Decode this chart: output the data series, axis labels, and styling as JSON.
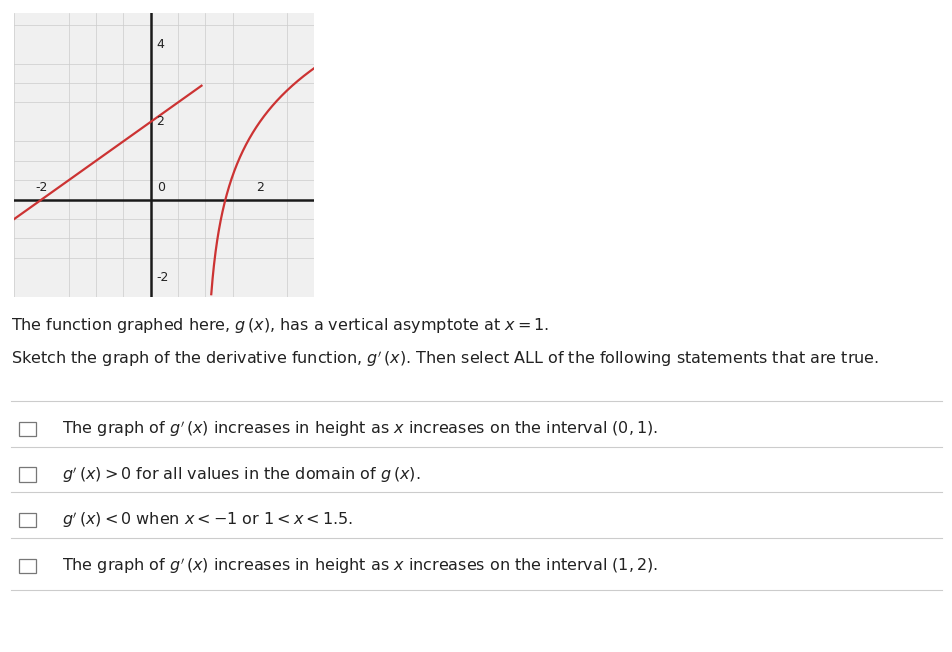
{
  "bg_color": "#ffffff",
  "graph_bg": "#f0f0f0",
  "grid_color": "#cccccc",
  "axis_color": "#1a1a1a",
  "curve_color": "#cc3333",
  "curve_linewidth": 1.6,
  "xlim": [
    -2.5,
    3.0
  ],
  "ylim": [
    -2.5,
    4.8
  ],
  "xticks": [
    -2,
    0,
    2
  ],
  "yticks": [
    -2,
    2,
    4
  ],
  "asymptote_x": 1.0,
  "text_line1": "The function graphed here, $g\\,(x)$, has a vertical asymptote at $x = 1$.",
  "text_line2": "Sketch the graph of the derivative function, $g'\\,(x)$. Then select ALL of the following statements that are true.",
  "checkbox_items": [
    "The graph of $g'\\,(x)$ increases in height as $x$ increases on the interval $(0, 1)$.",
    "$g'\\,(x) > 0$ for all values in the domain of $g\\,(x)$.",
    "$g'\\,(x) < 0$ when $x < -1$ or $1 < x < 1.5$.",
    "The graph of $g'\\,(x)$ increases in height as $x$ increases on the interval $(1, 2)$."
  ]
}
